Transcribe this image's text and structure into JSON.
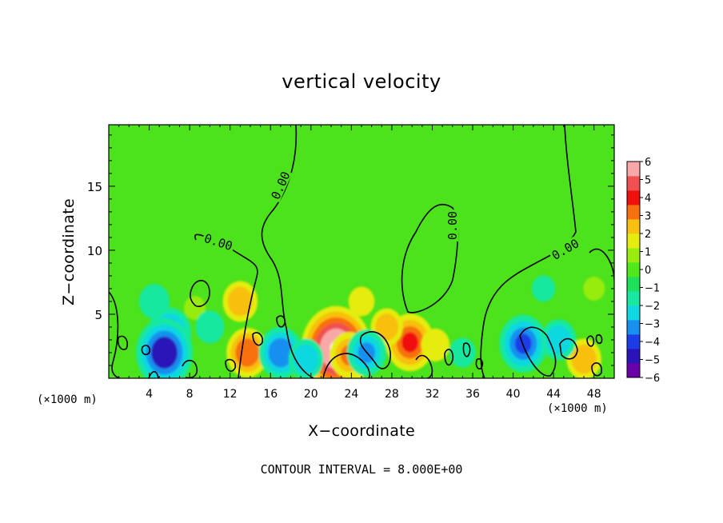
{
  "chart_data": {
    "type": "heatmap",
    "title": "vertical velocity",
    "xlabel": "X−coordinate",
    "ylabel": "Z−coordinate",
    "x_unit_label": "(×1000 m)",
    "x_ticks": [
      4,
      8,
      12,
      16,
      20,
      24,
      28,
      32,
      36,
      40,
      44,
      48
    ],
    "y_ticks": [
      5,
      10,
      15
    ],
    "xlim": [
      0,
      50
    ],
    "ylim": [
      0,
      19.8
    ],
    "colorbar": {
      "ticks": [
        "6",
        "5",
        "4",
        "3",
        "2",
        "1",
        "0",
        "−1",
        "−2",
        "−3",
        "−4",
        "−5",
        "−6"
      ],
      "range": [
        -6,
        6
      ],
      "colors": [
        "#6a00a8",
        "#2a14b8",
        "#1c3ce8",
        "#1890f0",
        "#10d8e0",
        "#18e8a0",
        "#1ee05a",
        "#50e81a",
        "#98ec10",
        "#e6ec10",
        "#f8c010",
        "#f87010",
        "#f01010",
        "#f05050",
        "#f8a8a8"
      ]
    },
    "contour_label": "0.00",
    "contour_interval_text": "CONTOUR INTERVAL = 8.000E+00",
    "features": [
      {
        "x": 22.5,
        "z": 2.3,
        "w": 6.5
      },
      {
        "x": 23.8,
        "z": 1.8,
        "w": 3.0
      },
      {
        "x": 29.8,
        "z": 2.8,
        "w": 4.0
      },
      {
        "x": 27.5,
        "z": 4.0,
        "w": 2.2
      },
      {
        "x": 32.3,
        "z": 2.6,
        "w": 1.8
      },
      {
        "x": 13.7,
        "z": 2.0,
        "w": 3.3
      },
      {
        "x": 13.0,
        "z": 6.0,
        "w": 2.5
      },
      {
        "x": 25.0,
        "z": 6.0,
        "w": 1.5
      },
      {
        "x": 8.5,
        "z": 5.5,
        "w": 1.0
      },
      {
        "x": 47.0,
        "z": 1.5,
        "w": 2.5
      },
      {
        "x": 48.0,
        "z": 7.0,
        "w": 1.0
      },
      {
        "x": 6.0,
        "z": 3.5,
        "w": -3.5
      },
      {
        "x": 5.5,
        "z": 2.0,
        "w": -5.0
      },
      {
        "x": 4.5,
        "z": 6.0,
        "w": -2.0
      },
      {
        "x": 17.0,
        "z": 2.0,
        "w": -3.5
      },
      {
        "x": 19.5,
        "z": 1.5,
        "w": -2.5
      },
      {
        "x": 25.5,
        "z": 2.0,
        "w": -3.0
      },
      {
        "x": 41.0,
        "z": 2.7,
        "w": -4.0
      },
      {
        "x": 44.5,
        "z": 3.0,
        "w": -2.5
      },
      {
        "x": 10.0,
        "z": 4.0,
        "w": -1.8
      },
      {
        "x": 43.0,
        "z": 7.0,
        "w": -1.2
      },
      {
        "x": 35.0,
        "z": 2.0,
        "w": -1.5
      }
    ]
  }
}
